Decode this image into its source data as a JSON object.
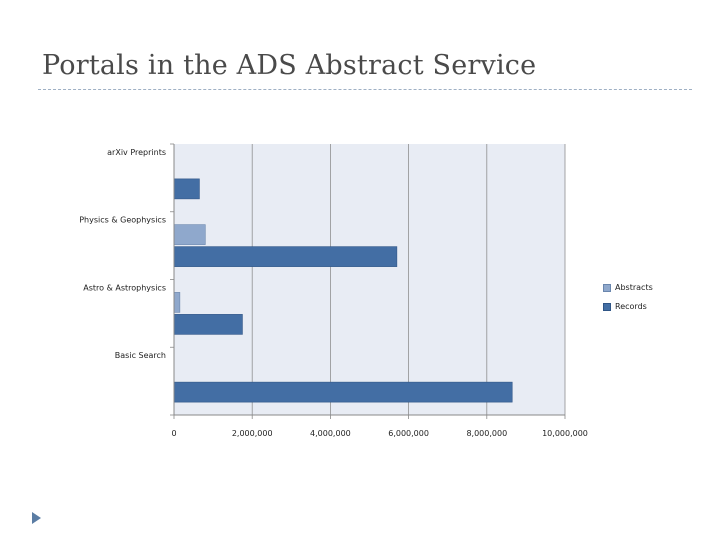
{
  "slide": {
    "title": "Portals in the ADS Abstract Service"
  },
  "colors": {
    "abstracts": "#8fa8cc",
    "records": "#436ea4",
    "plot_bg": "#e8ecf4",
    "grid": "#8f8f8f"
  },
  "chart_data": {
    "type": "bar",
    "orientation": "horizontal",
    "categories": [
      "arXiv Preprints",
      "Physics & Geophysics",
      "Astro & Astrophysics",
      "Basic Search"
    ],
    "series": [
      {
        "name": "Abstracts",
        "values": [
          0,
          800000,
          150000,
          0
        ]
      },
      {
        "name": "Records",
        "values": [
          650000,
          5700000,
          1750000,
          8650000
        ]
      }
    ],
    "xlim": [
      0,
      10000000
    ],
    "x_ticks": [
      0,
      2000000,
      4000000,
      6000000,
      8000000,
      10000000
    ],
    "x_tick_labels": [
      "0",
      "2,000,000",
      "4,000,000",
      "6,000,000",
      "8,000,000",
      "10,000,000"
    ],
    "grid": true,
    "legend_position": "right",
    "title": "",
    "xlabel": "",
    "ylabel": ""
  }
}
